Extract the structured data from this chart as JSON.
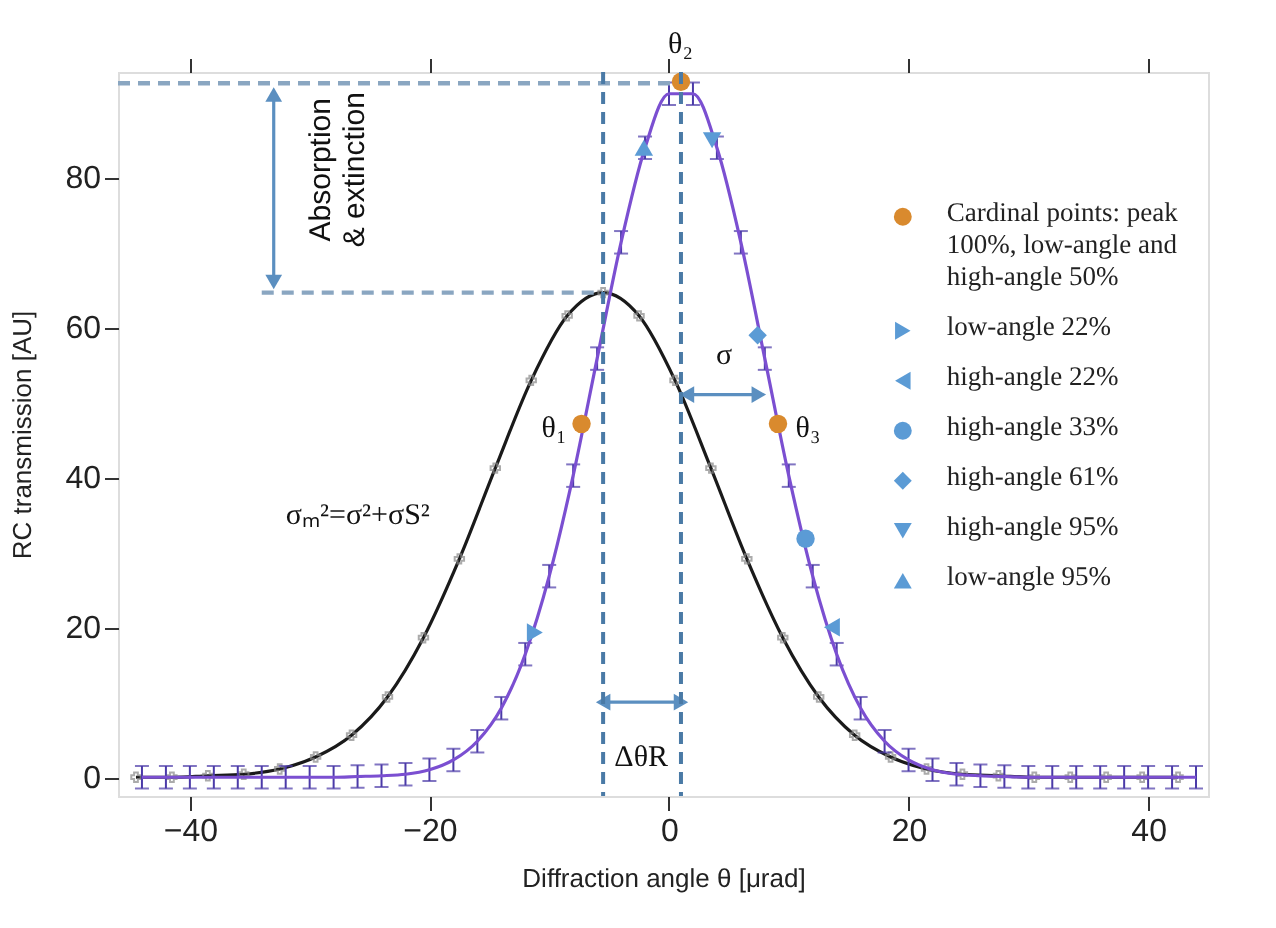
{
  "chart_data": {
    "type": "line",
    "xlabel": "Diffraction angle θ [μrad]",
    "ylabel": "RC transmission  [AU]",
    "xlim": [
      -46,
      45
    ],
    "ylim": [
      -2.5,
      94
    ],
    "xticks": [
      -40,
      -20,
      0,
      20,
      40
    ],
    "yticks": [
      0,
      20,
      40,
      60,
      80
    ],
    "grid": false,
    "legend": "top right",
    "series": [
      {
        "color": "#1a1a1a",
        "line_style": "solid",
        "marker": "cross",
        "x": [
          -44.5,
          -41.5,
          -38.5,
          -35.5,
          -32.5,
          -29.5,
          -26.5,
          -23.5,
          -20.5,
          -17.5,
          -14.5,
          -11.5,
          -8.5,
          -5.5,
          -2.5,
          0.5,
          3.5,
          6.5,
          9.5,
          12.5,
          15.5,
          18.5,
          21.5,
          24.5,
          27.5,
          30.5,
          33.5,
          36.5,
          39.5,
          42.5
        ],
        "values": [
          0,
          0,
          0.2,
          0.4,
          1.1,
          2.7,
          5.6,
          10.7,
          18.6,
          29.1,
          41.2,
          52.9,
          61.5,
          64.6,
          61.5,
          52.9,
          41.2,
          29.1,
          18.6,
          10.7,
          5.6,
          2.7,
          1.1,
          0.4,
          0.2,
          0,
          0,
          0,
          0,
          0
        ]
      },
      {
        "color": "#7b4fd1",
        "line_style": "solid",
        "marker": "none",
        "x": [
          -44,
          -42,
          -40,
          -38,
          -36,
          -34,
          -32,
          -30,
          -28,
          -26,
          -24,
          -22,
          -20,
          -18,
          -16,
          -14,
          -12,
          -10,
          -8,
          -6,
          -4,
          -2,
          0,
          2,
          4,
          6,
          8,
          10,
          12,
          14,
          16,
          18,
          20,
          22,
          24,
          26,
          28,
          30,
          32,
          34,
          36,
          38,
          40,
          42,
          44
        ],
        "values": [
          0,
          0,
          0,
          0,
          0,
          0,
          0,
          0,
          0,
          0.1,
          0.2,
          0.4,
          1.0,
          2.3,
          4.8,
          9.2,
          16.4,
          26.8,
          40.2,
          55.8,
          71.3,
          83.9,
          91.1,
          91.1,
          83.9,
          71.3,
          55.8,
          40.2,
          26.8,
          16.4,
          9.2,
          4.8,
          2.3,
          1.0,
          0.4,
          0.2,
          0.1,
          0,
          0,
          0,
          0,
          0,
          0,
          0,
          0
        ],
        "errors": [
          1.5,
          1.5,
          1.5,
          1.5,
          1.5,
          1.5,
          1.5,
          1.5,
          1.5,
          1.5,
          1.5,
          1.5,
          1.5,
          1.5,
          1.5,
          1.5,
          1.5,
          1.5,
          1.5,
          1.5,
          1.5,
          1.5,
          1.5,
          1.5,
          1.5,
          1.5,
          1.5,
          1.5,
          1.5,
          1.5,
          1.5,
          1.5,
          1.5,
          1.5,
          1.5,
          1.5,
          1.5,
          1.5,
          1.5,
          1.5,
          1.5,
          1.5,
          1.5,
          1.5,
          1.5
        ]
      },
      {
        "color": "#8aa6c1",
        "line_style": "dashed",
        "marker": "none",
        "x": [
          -46,
          1
        ],
        "values": [
          92.5,
          92.5
        ]
      },
      {
        "color": "#8aa6c1",
        "line_style": "dashed",
        "marker": "none",
        "x": [
          -34,
          -5.5
        ],
        "values": [
          64.6,
          64.6
        ]
      },
      {
        "color": "#5b8fc0",
        "line_style": "solid",
        "marker": "triangle",
        "x": [
          -33,
          -33
        ],
        "values": [
          91,
          66
        ]
      },
      {
        "color": "#5b8fc0",
        "line_style": "solid",
        "marker": "triangle",
        "x": [
          1.5,
          7.5
        ],
        "values": [
          51,
          51
        ]
      },
      {
        "color": "#5b8fc0",
        "line_style": "solid",
        "marker": "triangle",
        "x": [
          -5.5,
          1
        ],
        "values": [
          10,
          10
        ]
      },
      {
        "type": "scatter",
        "name": "Cardinal points: peak 100%, low-angle and high-angle 50%",
        "color": "#d98a2e",
        "marker": "circle",
        "x": [
          -7.3,
          1.0,
          9.1
        ],
        "values": [
          47.1,
          92.7,
          47.1
        ]
      },
      {
        "type": "scatter",
        "name": "low-angle 22%",
        "color": "#5b9bd5",
        "marker": "triangle-right",
        "x": [
          -11.2
        ],
        "values": [
          19.3
        ]
      },
      {
        "type": "scatter",
        "name": "high-angle 22%",
        "color": "#5b9bd5",
        "marker": "triangle-left",
        "x": [
          13.6
        ],
        "values": [
          20
        ]
      },
      {
        "type": "scatter",
        "name": "high-angle 33%",
        "color": "#5b9bd5",
        "marker": "circle",
        "x": [
          11.4
        ],
        "values": [
          31.8
        ]
      },
      {
        "type": "scatter",
        "name": "high-angle 61%",
        "color": "#5b9bd5",
        "marker": "diamond",
        "x": [
          7.4
        ],
        "values": [
          58.9
        ]
      },
      {
        "type": "scatter",
        "name": "high-angle 95%",
        "color": "#5b9bd5",
        "marker": "triangle-down",
        "x": [
          3.6
        ],
        "values": [
          84.9
        ]
      },
      {
        "type": "scatter",
        "name": "low-angle 95%",
        "color": "#5b9bd5",
        "marker": "triangle-up",
        "x": [
          -2.1
        ],
        "values": [
          83.9
        ]
      }
    ],
    "ref_lines": [
      {
        "axis": "x",
        "value": -5.5,
        "color": "#4a7aa6",
        "line_style": "dashed"
      },
      {
        "axis": "x",
        "value": 1,
        "color": "#4a7aa6",
        "line_style": "dashed"
      }
    ],
    "annotations": [
      "θ₁",
      "θ₂",
      "θ₃",
      "Absorption & extinction",
      "σₘ²=σ²+σS²",
      "σ",
      "ΔθR"
    ]
  }
}
